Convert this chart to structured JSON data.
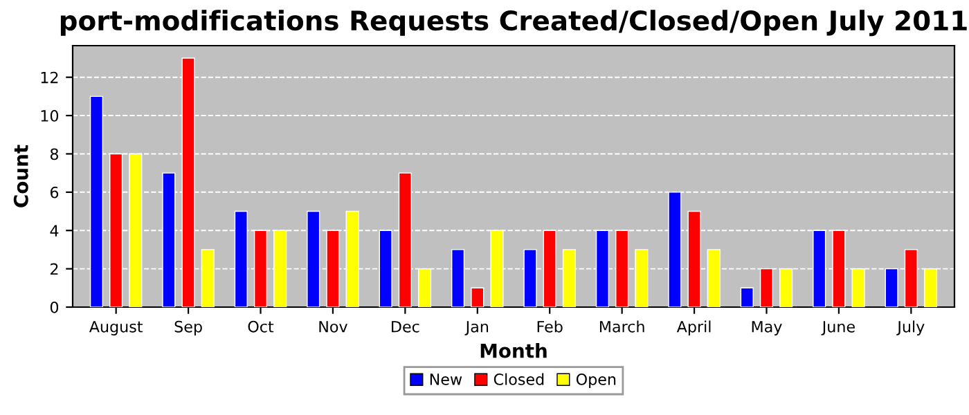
{
  "chart_data": {
    "type": "bar",
    "title": "port-modifications Requests Created/Closed/Open July 2011",
    "xlabel": "Month",
    "ylabel": "Count",
    "categories": [
      "August",
      "Sep",
      "Oct",
      "Nov",
      "Dec",
      "Jan",
      "Feb",
      "March",
      "April",
      "May",
      "June",
      "July"
    ],
    "series": [
      {
        "name": "New",
        "color": "#0000ff",
        "values": [
          11,
          7,
          5,
          5,
          4,
          3,
          3,
          4,
          6,
          1,
          4,
          2
        ]
      },
      {
        "name": "Closed",
        "color": "#ff0000",
        "values": [
          8,
          13,
          4,
          4,
          7,
          1,
          4,
          4,
          5,
          2,
          4,
          3
        ]
      },
      {
        "name": "Open",
        "color": "#ffff00",
        "values": [
          8,
          3,
          4,
          5,
          2,
          4,
          3,
          3,
          3,
          2,
          2,
          2
        ]
      }
    ],
    "ylim": [
      0,
      13.65
    ],
    "yticks": [
      0,
      2,
      4,
      6,
      8,
      10,
      12
    ],
    "grid": "y",
    "legend": "bottom"
  }
}
